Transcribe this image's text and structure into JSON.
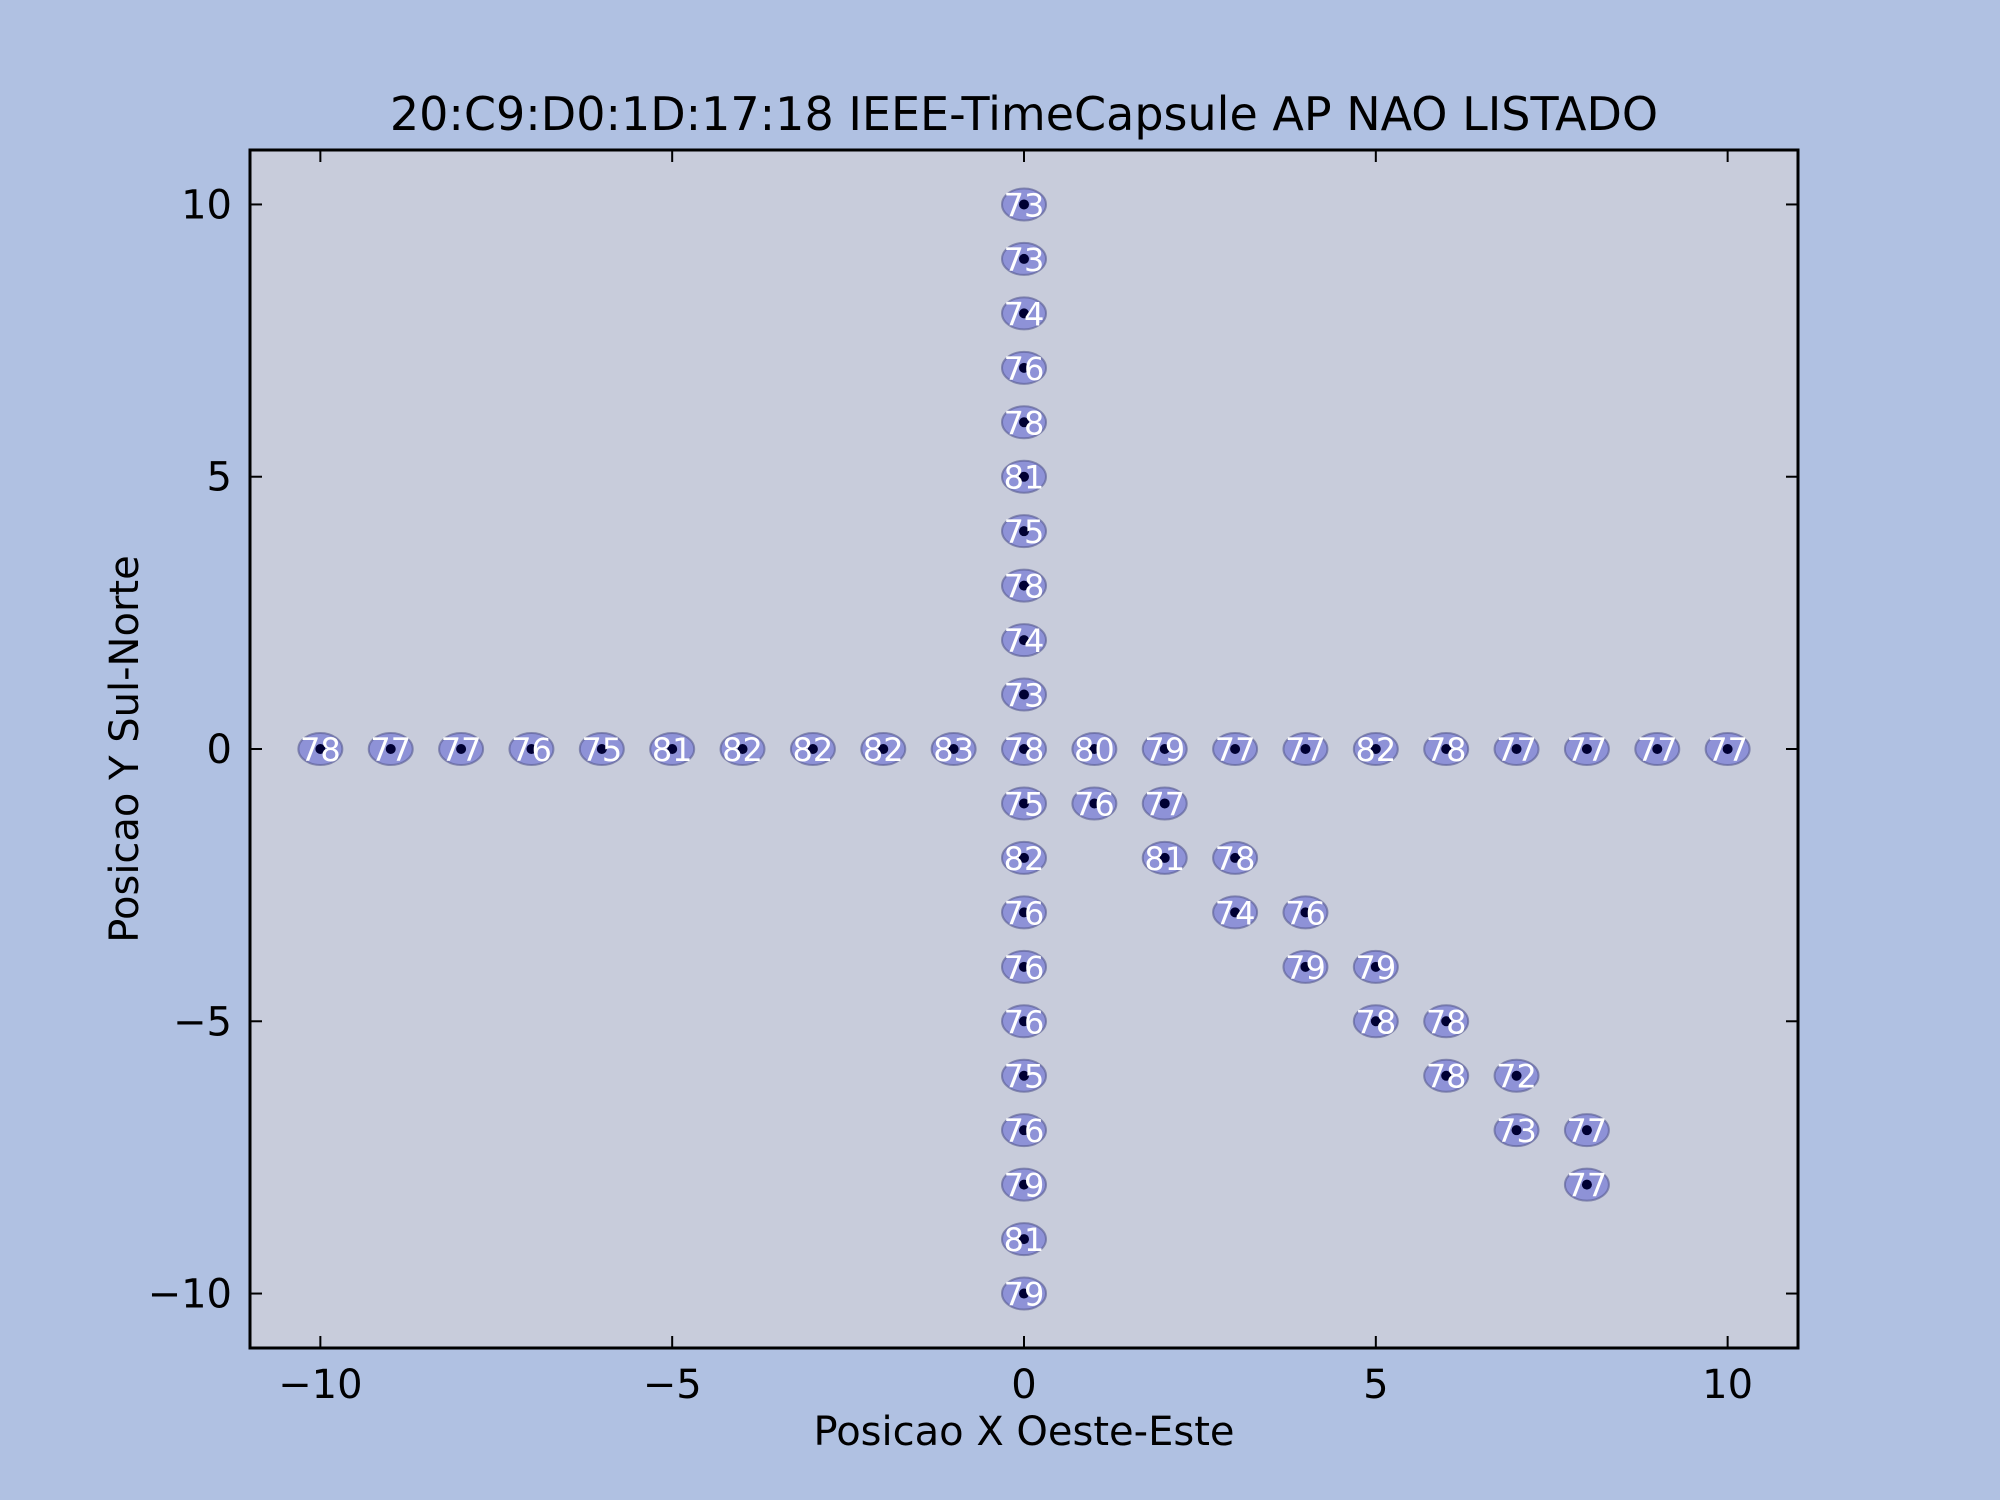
{
  "chart_data": {
    "type": "scatter",
    "title": "20:C9:D0:1D:17:18 IEEE-TimeCapsule AP NAO LISTADO",
    "xlabel": "Posicao X Oeste-Este",
    "ylabel": "Posicao Y Sul-Norte",
    "xlim": [
      -11,
      11
    ],
    "ylim": [
      -11,
      11
    ],
    "xticks": [
      -10,
      -5,
      0,
      5,
      10
    ],
    "yticks": [
      -10,
      -5,
      0,
      5,
      10
    ],
    "xtick_labels": [
      "−10",
      "−5",
      "0",
      "5",
      "10"
    ],
    "ytick_labels": [
      "−10",
      "−5",
      "0",
      "5",
      "10"
    ],
    "grid": false,
    "colors": {
      "figure_background": "#b0c1e2",
      "plot_background": "#c8ccdb",
      "point": "#000033",
      "ellipse_fill": "#7b7fd6",
      "ellipse_stroke": "#55588f",
      "label": "#ffffff"
    },
    "points": [
      {
        "x": 0,
        "y": 10,
        "label": "73"
      },
      {
        "x": 0,
        "y": 9,
        "label": "73"
      },
      {
        "x": 0,
        "y": 8,
        "label": "74"
      },
      {
        "x": 0,
        "y": 7,
        "label": "76"
      },
      {
        "x": 0,
        "y": 6,
        "label": "78"
      },
      {
        "x": 0,
        "y": 5,
        "label": "81"
      },
      {
        "x": 0,
        "y": 4,
        "label": "75"
      },
      {
        "x": 0,
        "y": 3,
        "label": "78"
      },
      {
        "x": 0,
        "y": 2,
        "label": "74"
      },
      {
        "x": 0,
        "y": 1,
        "label": "73"
      },
      {
        "x": -10,
        "y": 0,
        "label": "78"
      },
      {
        "x": -9,
        "y": 0,
        "label": "77"
      },
      {
        "x": -8,
        "y": 0,
        "label": "77"
      },
      {
        "x": -7,
        "y": 0,
        "label": "76"
      },
      {
        "x": -6,
        "y": 0,
        "label": "75"
      },
      {
        "x": -5,
        "y": 0,
        "label": "81"
      },
      {
        "x": -4,
        "y": 0,
        "label": "82"
      },
      {
        "x": -3,
        "y": 0,
        "label": "82"
      },
      {
        "x": -2,
        "y": 0,
        "label": "82"
      },
      {
        "x": -1,
        "y": 0,
        "label": "83"
      },
      {
        "x": 0,
        "y": 0,
        "label": "78"
      },
      {
        "x": 1,
        "y": 0,
        "label": "80"
      },
      {
        "x": 2,
        "y": 0,
        "label": "79"
      },
      {
        "x": 3,
        "y": 0,
        "label": "77"
      },
      {
        "x": 4,
        "y": 0,
        "label": "77"
      },
      {
        "x": 5,
        "y": 0,
        "label": "82"
      },
      {
        "x": 6,
        "y": 0,
        "label": "78"
      },
      {
        "x": 7,
        "y": 0,
        "label": "77"
      },
      {
        "x": 8,
        "y": 0,
        "label": "77"
      },
      {
        "x": 9,
        "y": 0,
        "label": "77"
      },
      {
        "x": 10,
        "y": 0,
        "label": "77"
      },
      {
        "x": 0,
        "y": -1,
        "label": "75"
      },
      {
        "x": 1,
        "y": -1,
        "label": "76"
      },
      {
        "x": 2,
        "y": -1,
        "label": "77"
      },
      {
        "x": 0,
        "y": -2,
        "label": "82"
      },
      {
        "x": 2,
        "y": -2,
        "label": "81"
      },
      {
        "x": 3,
        "y": -2,
        "label": "78"
      },
      {
        "x": 0,
        "y": -3,
        "label": "76"
      },
      {
        "x": 3,
        "y": -3,
        "label": "74"
      },
      {
        "x": 4,
        "y": -3,
        "label": "76"
      },
      {
        "x": 0,
        "y": -4,
        "label": "76"
      },
      {
        "x": 4,
        "y": -4,
        "label": "79"
      },
      {
        "x": 5,
        "y": -4,
        "label": "79"
      },
      {
        "x": 0,
        "y": -5,
        "label": "76"
      },
      {
        "x": 5,
        "y": -5,
        "label": "78"
      },
      {
        "x": 6,
        "y": -5,
        "label": "78"
      },
      {
        "x": 0,
        "y": -6,
        "label": "75"
      },
      {
        "x": 6,
        "y": -6,
        "label": "78"
      },
      {
        "x": 7,
        "y": -6,
        "label": "72"
      },
      {
        "x": 0,
        "y": -7,
        "label": "76"
      },
      {
        "x": 7,
        "y": -7,
        "label": "73"
      },
      {
        "x": 8,
        "y": -7,
        "label": "77"
      },
      {
        "x": 0,
        "y": -8,
        "label": "79"
      },
      {
        "x": 8,
        "y": -8,
        "label": "77"
      },
      {
        "x": 0,
        "y": -9,
        "label": "81"
      },
      {
        "x": 0,
        "y": -10,
        "label": "79"
      }
    ]
  }
}
